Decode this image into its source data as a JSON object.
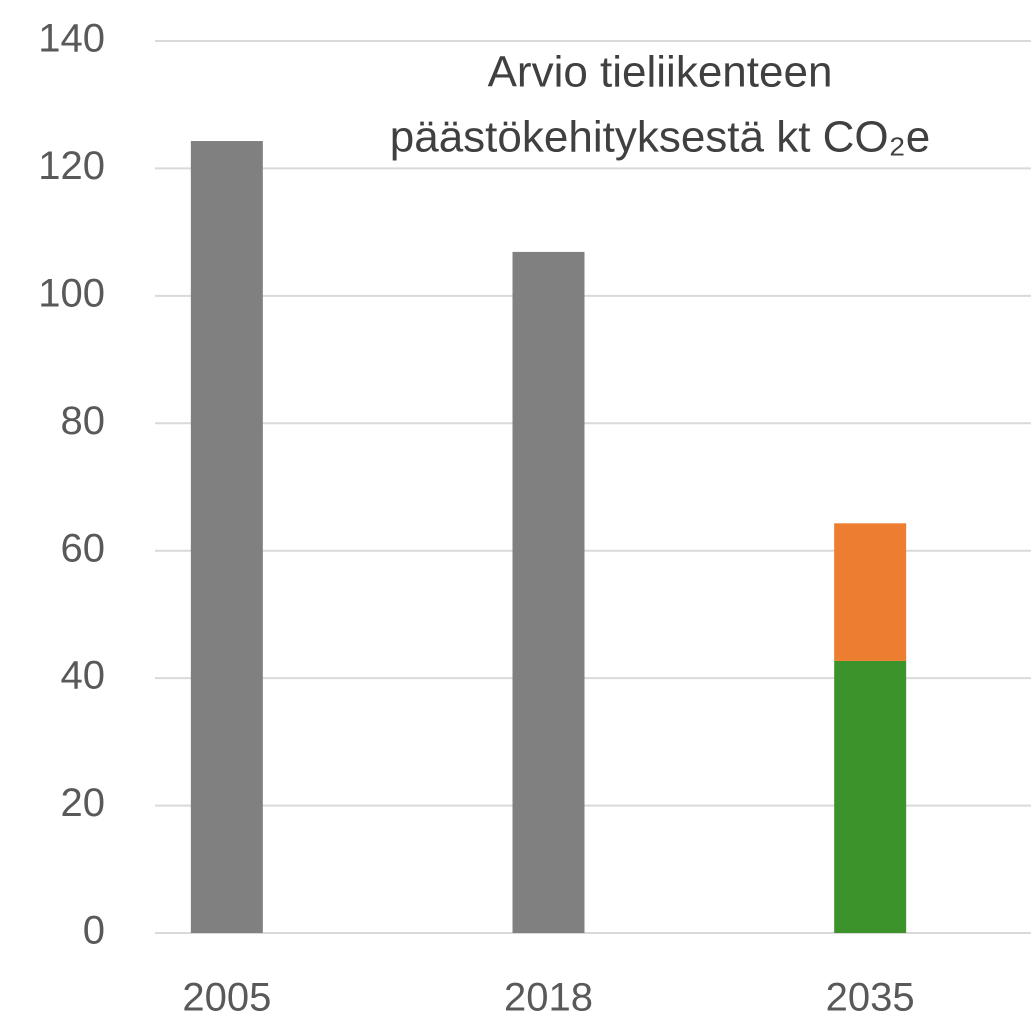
{
  "chart_data": {
    "type": "stacked_bar",
    "title": [
      "Arvio tieliikenteen",
      "päästökehityksestä kt CO₂e"
    ],
    "categories": [
      "2005",
      "2018",
      "2035"
    ],
    "series": [
      {
        "color": "#808080",
        "values": [
          124.3,
          106.9,
          null
        ]
      },
      {
        "color": "#3c922b",
        "values": [
          null,
          null,
          42.7
        ]
      },
      {
        "color": "#ed7d31",
        "values": [
          null,
          null,
          21.6
        ]
      }
    ],
    "ylim": [
      0,
      140
    ],
    "yticks": [
      0,
      20,
      40,
      60,
      80,
      100,
      120,
      140
    ],
    "grid": true
  }
}
